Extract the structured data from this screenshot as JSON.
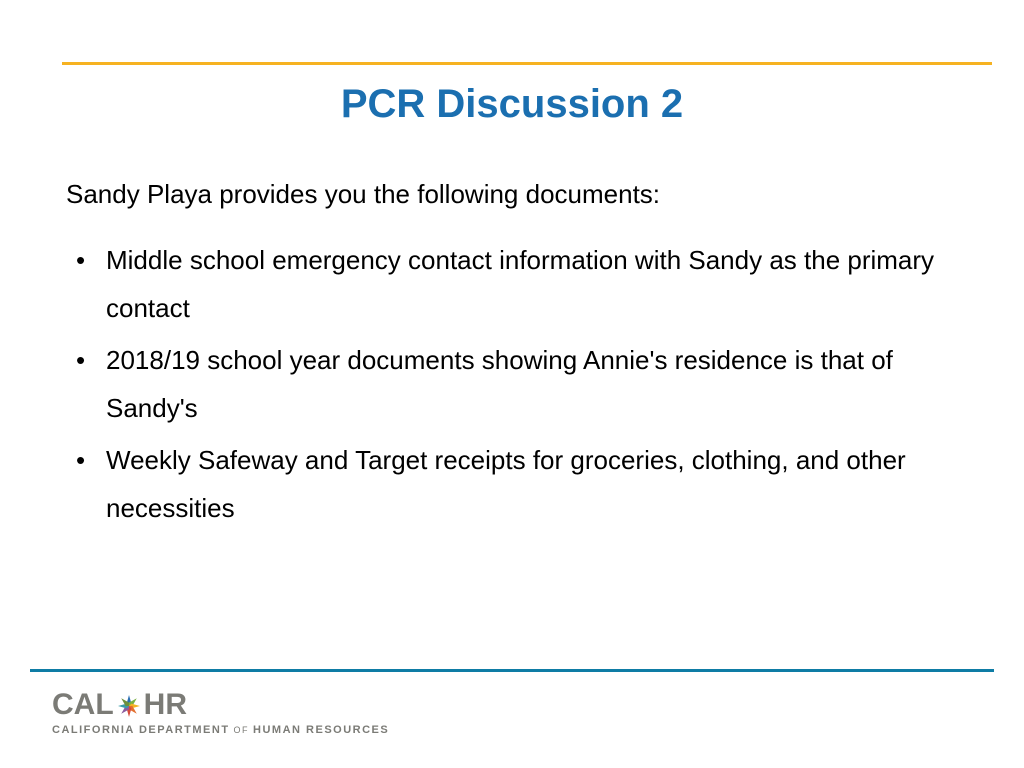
{
  "colors": {
    "gold_rule": "#f6b221",
    "teal_rule": "#0e7ca5",
    "title": "#1b6fb0",
    "body_text": "#000000",
    "logo_gray": "#7b7b76",
    "logo_sub": "#7b7b76"
  },
  "typography": {
    "title_fontsize": 40,
    "body_fontsize": 26,
    "body_lineheight": 48,
    "logo_top_fontsize": 30,
    "logo_sub_fontsize": 11
  },
  "title": "PCR Discussion 2",
  "intro": "Sandy Playa provides you the following documents:",
  "bullets": [
    "Middle school emergency contact information with Sandy as the primary contact",
    "2018/19 school year documents showing Annie's residence is that of Sandy's",
    "Weekly Safeway and Target receipts for groceries, clothing, and other necessities"
  ],
  "logo": {
    "brand_left": "CAL",
    "brand_right": "HR",
    "sub_left": "CALIFORNIA DEPARTMENT",
    "sub_of": " OF ",
    "sub_right": "HUMAN RESOURCES",
    "star_colors": {
      "n": "#2a6fb3",
      "ne": "#7ab043",
      "e": "#f4b223",
      "se": "#e36f2f",
      "s": "#d64a3a",
      "sw": "#8c5a9e",
      "w": "#3a9ba8",
      "nw": "#6c8f3c"
    }
  }
}
